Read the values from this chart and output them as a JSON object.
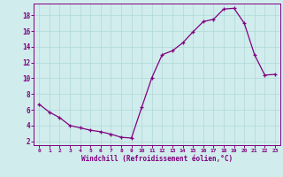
{
  "x": [
    0,
    1,
    2,
    3,
    4,
    5,
    6,
    7,
    8,
    9,
    10,
    11,
    12,
    13,
    14,
    15,
    16,
    17,
    18,
    19,
    20,
    21,
    22,
    23
  ],
  "y": [
    6.7,
    5.7,
    5.0,
    4.0,
    3.7,
    3.4,
    3.2,
    2.9,
    2.5,
    2.4,
    6.3,
    10.1,
    13.0,
    13.5,
    14.5,
    15.9,
    17.2,
    17.5,
    18.8,
    18.9,
    17.0,
    13.0,
    10.4,
    10.5
  ],
  "xlim": [
    -0.5,
    23.5
  ],
  "ylim": [
    1.5,
    19.5
  ],
  "yticks": [
    2,
    4,
    6,
    8,
    10,
    12,
    14,
    16,
    18
  ],
  "xticks": [
    0,
    1,
    2,
    3,
    4,
    5,
    6,
    7,
    8,
    9,
    10,
    11,
    12,
    13,
    14,
    15,
    16,
    17,
    18,
    19,
    20,
    21,
    22,
    23
  ],
  "xlabel": "Windchill (Refroidissement éolien,°C)",
  "line_color": "#800080",
  "marker": "+",
  "background_color": "#d0ecec",
  "grid_color": "#b0d8d8",
  "tick_color": "#800080",
  "label_color": "#800080",
  "font_family": "monospace"
}
